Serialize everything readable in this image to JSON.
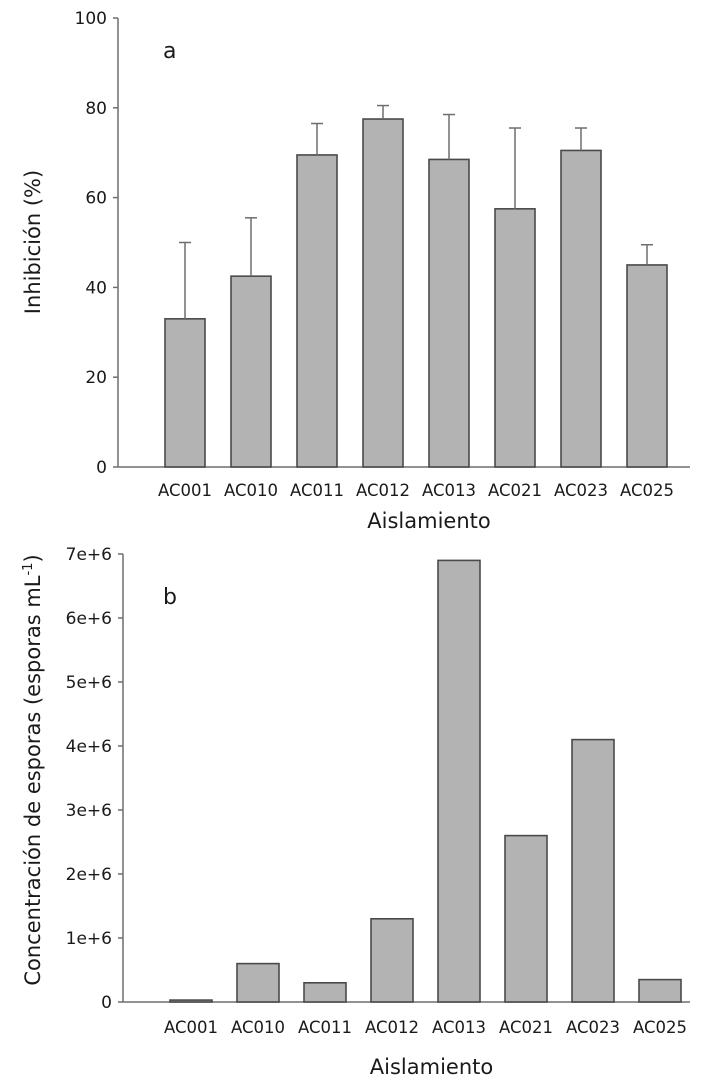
{
  "chart_data": [
    {
      "type": "bar",
      "panel_label": "a",
      "categories": [
        "AC001",
        "AC010",
        "AC011",
        "AC012",
        "AC013",
        "AC021",
        "AC023",
        "AC025"
      ],
      "values": [
        33,
        42.5,
        69.5,
        77.5,
        68.5,
        57.5,
        70.5,
        45
      ],
      "error_plus": [
        17,
        13,
        7,
        3,
        10,
        18,
        5,
        4.5
      ],
      "xlabel": "Aislamiento",
      "ylabel": "Inhibición (%)",
      "ylim": [
        0,
        100
      ],
      "yticks": [
        "0",
        "20",
        "40",
        "60",
        "80",
        "100"
      ],
      "grid": false,
      "bar_color": "#b3b3b3"
    },
    {
      "type": "bar",
      "panel_label": "b",
      "categories": [
        "AC001",
        "AC010",
        "AC011",
        "AC012",
        "AC013",
        "AC021",
        "AC023",
        "AC025"
      ],
      "values": [
        30000,
        600000,
        300000,
        1300000,
        6900000,
        2600000,
        4100000,
        350000
      ],
      "xlabel": "Aislamiento",
      "ylabel": "Concentración de esporas (esporas mL",
      "ylabel_sup": "-1",
      "ylabel_close": ")",
      "ylim": [
        0,
        7000000
      ],
      "yticks": [
        "0",
        "1e+6",
        "2e+6",
        "3e+6",
        "4e+6",
        "5e+6",
        "6e+6",
        "7e+6"
      ],
      "grid": false,
      "bar_color": "#b3b3b3"
    }
  ]
}
